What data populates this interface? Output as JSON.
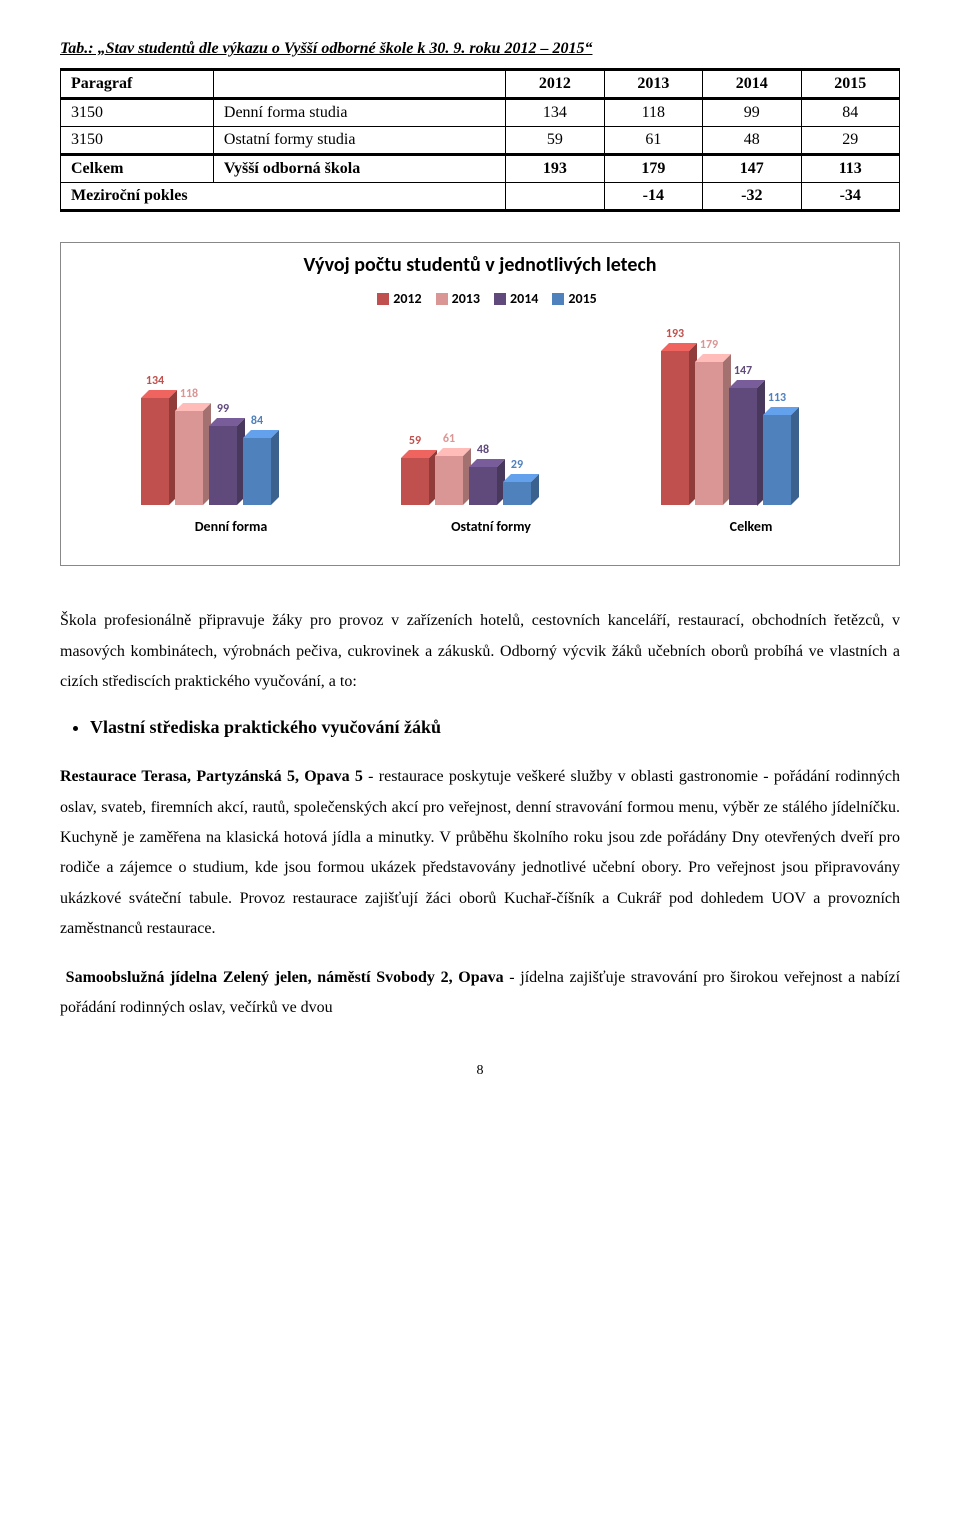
{
  "tableCaption": "Tab.: „Stav studentů dle výkazu o Vyšší odborné škole k 30. 9. roku 2012 – 2015“",
  "table": {
    "headers": [
      "Paragraf",
      "",
      "2012",
      "2013",
      "2014",
      "2015"
    ],
    "rows": [
      [
        "3150",
        "Denní forma studia",
        "134",
        "118",
        "99",
        "84"
      ],
      [
        "3150",
        "Ostatní formy studia",
        "59",
        "61",
        "48",
        "29"
      ],
      [
        "Celkem",
        "Vyšší odborná škola",
        "193",
        "179",
        "147",
        "113"
      ],
      [
        "Meziroční pokles",
        "",
        "",
        "-14",
        "-32",
        "-34"
      ]
    ]
  },
  "chart": {
    "title": "Vývoj počtu studentů v jednotlivých letech",
    "legend": [
      {
        "label": "2012",
        "color": "#c0504d"
      },
      {
        "label": "2013",
        "color": "#d99694"
      },
      {
        "label": "2014",
        "color": "#604a7b"
      },
      {
        "label": "2015",
        "color": "#4f81bd"
      }
    ],
    "groups": [
      {
        "label": "Denní forma",
        "values": [
          134,
          118,
          99,
          84
        ]
      },
      {
        "label": "Ostatní formy",
        "values": [
          59,
          61,
          48,
          29
        ]
      },
      {
        "label": "Celkem",
        "values": [
          193,
          179,
          147,
          113
        ]
      }
    ],
    "ymax": 200,
    "barWidth": 28,
    "barGap": 6,
    "depth": 8,
    "groupPositions": [
      40,
      300,
      560
    ],
    "background": "#ffffff"
  },
  "para1": "Škola profesionálně připravuje žáky pro provoz v zařízeních hotelů, cestovních kanceláří, restaurací, obchodních řetězců, v masových kombinátech, výrobnách pečiva, cukrovinek a zákusků. Odborný výcvik žáků učebních oborů probíhá ve vlastních a cizích střediscích praktického vyučování, a to:",
  "bullet": "Vlastní střediska praktického vyučování žáků",
  "para2a": "Restaurace Terasa, Partyzánská 5, Opava 5",
  "para2b": " -  restaurace  poskytuje veškeré služby v oblasti gastronomie - pořádání rodinných oslav, svateb, firemních akcí, rautů, společenských akcí pro veřejnost, denní stravování formou menu, výběr ze stálého jídelníčku. Kuchyně je zaměřena na klasická hotová jídla a minutky. V průběhu školního roku jsou zde pořádány Dny otevřených dveří pro rodiče a zájemce o studium, kde jsou formou ukázek představovány jednotlivé učební obory. Pro veřejnost jsou připravovány ukázkové sváteční tabule. Provoz restaurace zajišťují žáci oborů Kuchař-číšník a Cukrář pod dohledem UOV a provozních zaměstnanců restaurace.",
  "para3a": "Samoobslužná jídelna Zelený jelen, náměstí Svobody 2, Opava",
  "para3b": " -  jídelna zajišťuje stravování pro širokou veřejnost a nabízí pořádání rodinných oslav, večírků ve dvou",
  "pageNumber": "8"
}
